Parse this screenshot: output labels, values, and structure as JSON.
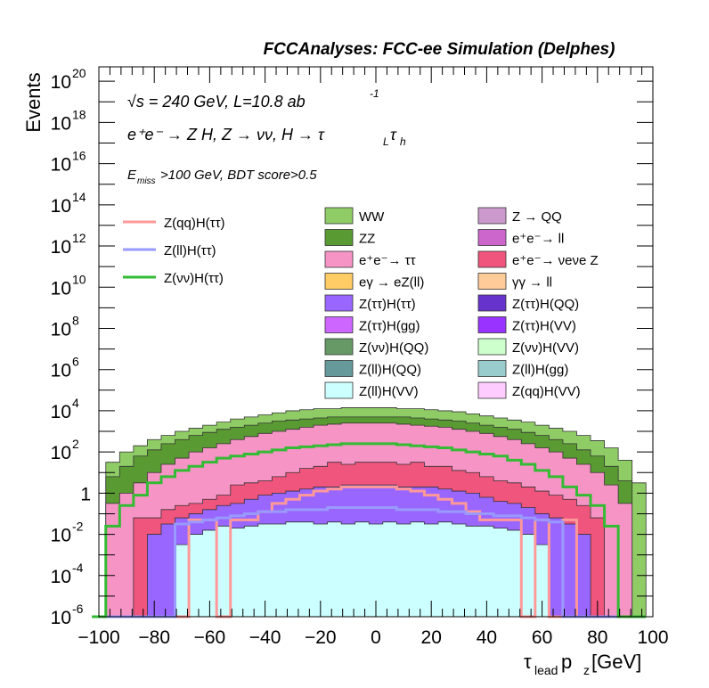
{
  "header": {
    "title": "FCCAnalyses: FCC-ee Simulation (Delphes)"
  },
  "annotations": {
    "energy": "√s = 240 GeV, L=10.8 ab",
    "energy_sup": "-1",
    "process": "e⁺e⁻ → Z H, Z → νν, H → τ_L τ_h",
    "process_main": "e⁺e⁻ → Z H, Z → νν, H → τ",
    "process_sub1": "L",
    "process_tau2": "τ",
    "process_sub2": "h",
    "cuts_pre": "E",
    "cuts_sub": "miss",
    "cuts_post": ">100 GeV, BDT score>0.5"
  },
  "chart_data": {
    "type": "area",
    "title": "",
    "xlabel": "τlead pz [GeV]",
    "xlabel_main": "τ",
    "xlabel_sub1": "lead",
    "xlabel_mid": " p",
    "xlabel_sub2": "z",
    "xlabel_unit": " [GeV]",
    "ylabel": "Events",
    "xlim": [
      -100,
      100
    ],
    "ylim_log10": [
      -6,
      20.7
    ],
    "y_scale": "log",
    "x_ticks": [
      "−100",
      "−80",
      "−60",
      "−40",
      "−20",
      "0",
      "20",
      "40",
      "60",
      "80",
      "100"
    ],
    "x_tick_values": [
      -100,
      -80,
      -60,
      -40,
      -20,
      0,
      20,
      40,
      60,
      80,
      100
    ],
    "y_ticks": [
      {
        "base": "10",
        "exp": "20",
        "log": 20
      },
      {
        "base": "10",
        "exp": "18",
        "log": 18
      },
      {
        "base": "10",
        "exp": "16",
        "log": 16
      },
      {
        "base": "10",
        "exp": "14",
        "log": 14
      },
      {
        "base": "10",
        "exp": "12",
        "log": 12
      },
      {
        "base": "10",
        "exp": "10",
        "log": 10
      },
      {
        "base": "10",
        "exp": "8",
        "log": 8
      },
      {
        "base": "10",
        "exp": "6",
        "log": 6
      },
      {
        "base": "10",
        "exp": "4",
        "log": 4
      },
      {
        "base": "10",
        "exp": "2",
        "log": 2
      },
      {
        "base": "1",
        "exp": "",
        "log": 0
      },
      {
        "base": "10",
        "exp": "-2",
        "log": -2
      },
      {
        "base": "10",
        "exp": "-4",
        "log": -4
      },
      {
        "base": "10",
        "exp": "-6",
        "log": -6
      }
    ],
    "stack_envelopes": [
      {
        "name": "WW",
        "color": "#8fcc66",
        "x": [
          -95,
          -90,
          -85,
          -80,
          -75,
          -70,
          -65,
          -60,
          -55,
          -50,
          -45,
          -40,
          -35,
          -30,
          -25,
          -20,
          -15,
          -10,
          -5,
          0,
          5,
          10,
          15,
          20,
          25,
          30,
          35,
          40,
          45,
          50,
          55,
          60,
          65,
          70,
          75,
          80,
          85,
          90,
          95
        ],
        "log10": [
          1.5,
          2.0,
          2.3,
          2.6,
          2.8,
          3.0,
          3.15,
          3.3,
          3.45,
          3.6,
          3.7,
          3.8,
          3.9,
          4.0,
          4.05,
          4.1,
          4.1,
          4.15,
          4.15,
          4.15,
          4.15,
          4.1,
          4.1,
          4.05,
          4.0,
          3.95,
          3.85,
          3.75,
          3.65,
          3.55,
          3.45,
          3.3,
          3.15,
          3.0,
          2.8,
          2.55,
          2.2,
          1.6,
          0.5
        ]
      },
      {
        "name": "ZZ",
        "color": "#5a9a32",
        "x": [
          -95,
          -90,
          -85,
          -80,
          -75,
          -70,
          -65,
          -60,
          -55,
          -50,
          -45,
          -40,
          -35,
          -30,
          -25,
          -20,
          -15,
          -10,
          -5,
          0,
          5,
          10,
          15,
          20,
          25,
          30,
          35,
          40,
          45,
          50,
          55,
          60,
          65,
          70,
          75,
          80,
          85,
          90,
          95
        ],
        "log10": [
          0.8,
          1.3,
          1.8,
          2.1,
          2.4,
          2.6,
          2.8,
          2.95,
          3.1,
          3.2,
          3.3,
          3.4,
          3.5,
          3.55,
          3.6,
          3.65,
          3.7,
          3.7,
          3.7,
          3.7,
          3.7,
          3.7,
          3.65,
          3.6,
          3.55,
          3.5,
          3.4,
          3.3,
          3.2,
          3.1,
          2.95,
          2.8,
          2.6,
          2.4,
          2.1,
          1.8,
          1.3,
          0.6,
          -6
        ]
      },
      {
        "name": "e+e- → ττ",
        "color": "#f794c6",
        "x": [
          -95,
          -90,
          -85,
          -80,
          -75,
          -70,
          -65,
          -60,
          -55,
          -50,
          -45,
          -40,
          -35,
          -30,
          -25,
          -20,
          -15,
          -10,
          -5,
          0,
          5,
          10,
          15,
          20,
          25,
          30,
          35,
          40,
          45,
          50,
          55,
          60,
          65,
          70,
          75,
          80,
          85,
          90,
          95
        ],
        "log10": [
          -0.5,
          0.0,
          0.5,
          1.0,
          1.4,
          1.7,
          2.0,
          2.2,
          2.4,
          2.6,
          2.75,
          2.9,
          3.0,
          3.1,
          3.2,
          3.3,
          3.35,
          3.4,
          3.4,
          3.4,
          3.4,
          3.35,
          3.3,
          3.25,
          3.2,
          3.1,
          3.0,
          2.9,
          2.75,
          2.6,
          2.4,
          2.2,
          2.0,
          1.7,
          1.4,
          1.0,
          0.4,
          -0.5,
          -6
        ]
      },
      {
        "name": "e+e- → νeνe Z",
        "color": "#f0557d",
        "x": [
          -95,
          -90,
          -85,
          -80,
          -75,
          -70,
          -65,
          -60,
          -55,
          -50,
          -45,
          -40,
          -35,
          -30,
          -25,
          -20,
          -15,
          -10,
          -5,
          0,
          5,
          10,
          15,
          20,
          25,
          30,
          35,
          40,
          45,
          50,
          55,
          60,
          65,
          70,
          75,
          80,
          85,
          90,
          95
        ],
        "log10": [
          -6,
          -6,
          -1.2,
          -1.2,
          -0.8,
          -0.6,
          -0.5,
          -0.3,
          -0.1,
          0.4,
          0.5,
          0.6,
          0.8,
          1.0,
          1.2,
          1.3,
          1.5,
          1.4,
          1.5,
          1.5,
          1.5,
          1.4,
          1.5,
          1.3,
          1.3,
          1.1,
          1.0,
          0.8,
          0.6,
          0.5,
          0.3,
          0.1,
          -0.1,
          -0.3,
          -0.6,
          -1.2,
          -6,
          -6,
          -6
        ]
      },
      {
        "name": "Z(ττ)H(ττ)",
        "color": "#9966ff",
        "x": [
          -95,
          -90,
          -85,
          -80,
          -75,
          -70,
          -65,
          -60,
          -55,
          -50,
          -45,
          -40,
          -35,
          -30,
          -25,
          -20,
          -15,
          -10,
          -5,
          0,
          5,
          10,
          15,
          20,
          25,
          30,
          35,
          40,
          45,
          50,
          55,
          60,
          65,
          70,
          75,
          80,
          85,
          90,
          95
        ],
        "log10": [
          -6,
          -6,
          -6,
          -2,
          -1.5,
          -1.2,
          -1.0,
          -0.8,
          -0.6,
          -0.5,
          -0.3,
          -0.1,
          0.0,
          0.1,
          0.2,
          0.3,
          0.3,
          0.4,
          0.4,
          0.4,
          0.4,
          0.3,
          0.3,
          0.3,
          0.2,
          0.1,
          0.0,
          -0.2,
          -0.4,
          -0.5,
          -0.7,
          -1.0,
          -1.2,
          -1.5,
          -2,
          -6,
          -6,
          -6,
          -6
        ]
      },
      {
        "name": "Z(ll)H(VV)",
        "color": "#ccffff",
        "x": [
          -95,
          -90,
          -85,
          -80,
          -75,
          -70,
          -65,
          -60,
          -55,
          -50,
          -45,
          -40,
          -35,
          -30,
          -25,
          -20,
          -15,
          -10,
          -5,
          0,
          5,
          10,
          15,
          20,
          25,
          30,
          35,
          40,
          45,
          50,
          55,
          60,
          65,
          70,
          75,
          80,
          85,
          90,
          95
        ],
        "log10": [
          -6,
          -6,
          -6,
          -6,
          -6,
          -2.5,
          -2.0,
          -1.8,
          -1.6,
          -1.7,
          -1.6,
          -1.5,
          -1.5,
          -1.4,
          -1.4,
          -1.5,
          -1.4,
          -1.5,
          -1.4,
          -1.5,
          -1.4,
          -1.5,
          -1.4,
          -1.5,
          -1.4,
          -1.5,
          -1.6,
          -1.6,
          -1.7,
          -1.8,
          -2.0,
          -2.5,
          -6,
          -6,
          -6,
          -6,
          -6,
          -6,
          -6
        ]
      }
    ],
    "series": [
      {
        "name": "Z(qq)H(ττ)",
        "color": "#ff9999",
        "x": [
          -100,
          -95,
          -90,
          -85,
          -80,
          -75,
          -70,
          -65,
          -60,
          -55,
          -50,
          -45,
          -40,
          -35,
          -30,
          -25,
          -20,
          -15,
          -10,
          -5,
          0,
          5,
          10,
          15,
          20,
          25,
          30,
          35,
          40,
          45,
          50,
          55,
          60,
          65,
          70,
          75,
          80,
          85,
          90,
          95
        ],
        "log10": [
          -6,
          -6,
          -6,
          -6,
          -6,
          -6,
          -6,
          -1.3,
          -1.3,
          -6,
          -1.3,
          -1.3,
          -0.9,
          -0.5,
          -0.3,
          -0.1,
          0.1,
          0.2,
          0.3,
          0.3,
          0.3,
          0.3,
          0.2,
          0.1,
          -0.1,
          -0.3,
          -0.5,
          -0.9,
          -1.3,
          -1.3,
          -1.3,
          -6,
          -1.3,
          -6,
          -1.3,
          -6,
          -6,
          -6,
          -6,
          -6
        ]
      },
      {
        "name": "Z(ll)H(ττ)",
        "color": "#9999ff",
        "x": [
          -100,
          -95,
          -90,
          -85,
          -80,
          -75,
          -70,
          -65,
          -60,
          -55,
          -50,
          -45,
          -40,
          -35,
          -30,
          -25,
          -20,
          -15,
          -10,
          -5,
          0,
          5,
          10,
          15,
          20,
          25,
          30,
          35,
          40,
          45,
          50,
          55,
          60,
          65,
          70,
          75,
          80,
          85,
          90,
          95
        ],
        "log10": [
          -6,
          -6,
          -6,
          -6,
          -6,
          -6,
          -1.5,
          -1.4,
          -1.3,
          -1.2,
          -1.1,
          -1.0,
          -0.9,
          -0.9,
          -0.8,
          -0.8,
          -0.8,
          -0.7,
          -0.7,
          -0.7,
          -0.7,
          -0.7,
          -0.8,
          -0.8,
          -0.8,
          -0.9,
          -0.9,
          -1.0,
          -1.0,
          -1.1,
          -1.1,
          -1.2,
          -1.3,
          -1.4,
          -6,
          -6,
          -6,
          -6,
          -6,
          -6
        ]
      },
      {
        "name": "Z(νν)H(ττ)",
        "color": "#33bb33",
        "x": [
          -100,
          -95,
          -90,
          -85,
          -80,
          -75,
          -70,
          -65,
          -60,
          -55,
          -50,
          -45,
          -40,
          -35,
          -30,
          -25,
          -20,
          -15,
          -10,
          -5,
          0,
          5,
          10,
          15,
          20,
          25,
          30,
          35,
          40,
          45,
          50,
          55,
          60,
          65,
          70,
          75,
          80,
          85,
          90,
          95
        ],
        "log10": [
          -6,
          -1.6,
          -0.6,
          -0.1,
          0.5,
          0.8,
          1.1,
          1.3,
          1.5,
          1.7,
          1.8,
          1.9,
          2.0,
          2.1,
          2.2,
          2.25,
          2.3,
          2.35,
          2.4,
          2.4,
          2.4,
          2.4,
          2.35,
          2.3,
          2.25,
          2.2,
          2.1,
          2.0,
          1.9,
          1.8,
          1.6,
          1.4,
          1.1,
          0.8,
          0.3,
          -0.1,
          -0.6,
          -1.6,
          -6,
          -6
        ]
      }
    ],
    "legend_lines": [
      "Z(qq)H(ττ)",
      "Z(ll)H(ττ)",
      "Z(νν)H(ττ)"
    ],
    "legend_lines_colors": [
      "#ff9999",
      "#9999ff",
      "#33bb33"
    ],
    "legend_boxes": [
      {
        "label": "WW",
        "color": "#8fcc66"
      },
      {
        "label": "Z → QQ",
        "color": "#cc99cc"
      },
      {
        "label": "ZZ",
        "color": "#5a9a32"
      },
      {
        "label": "e⁺e⁻→ ll",
        "color": "#cc66cc"
      },
      {
        "label": "e⁺e⁻→ ττ",
        "color": "#f794c6"
      },
      {
        "label": "e⁺e⁻→ νeνe Z",
        "color": "#f0557d"
      },
      {
        "label": "eγ → eZ(ll)",
        "color": "#ffcc66"
      },
      {
        "label": "γγ → ll",
        "color": "#ffcc99"
      },
      {
        "label": "Z(ττ)H(ττ)",
        "color": "#9966ff"
      },
      {
        "label": "Z(ττ)H(QQ)",
        "color": "#6633cc"
      },
      {
        "label": "Z(ττ)H(gg)",
        "color": "#cc66ff"
      },
      {
        "label": "Z(ττ)H(VV)",
        "color": "#9933ff"
      },
      {
        "label": "Z(νν)H(QQ)",
        "color": "#669966"
      },
      {
        "label": "Z(νν)H(VV)",
        "color": "#ccffcc"
      },
      {
        "label": "Z(ll)H(QQ)",
        "color": "#669999"
      },
      {
        "label": "Z(ll)H(gg)",
        "color": "#99cccc"
      },
      {
        "label": "Z(ll)H(VV)",
        "color": "#ccffff"
      },
      {
        "label": "Z(qq)H(VV)",
        "color": "#ffccff"
      }
    ],
    "grid": false,
    "legend_placement": "inside-upper"
  }
}
